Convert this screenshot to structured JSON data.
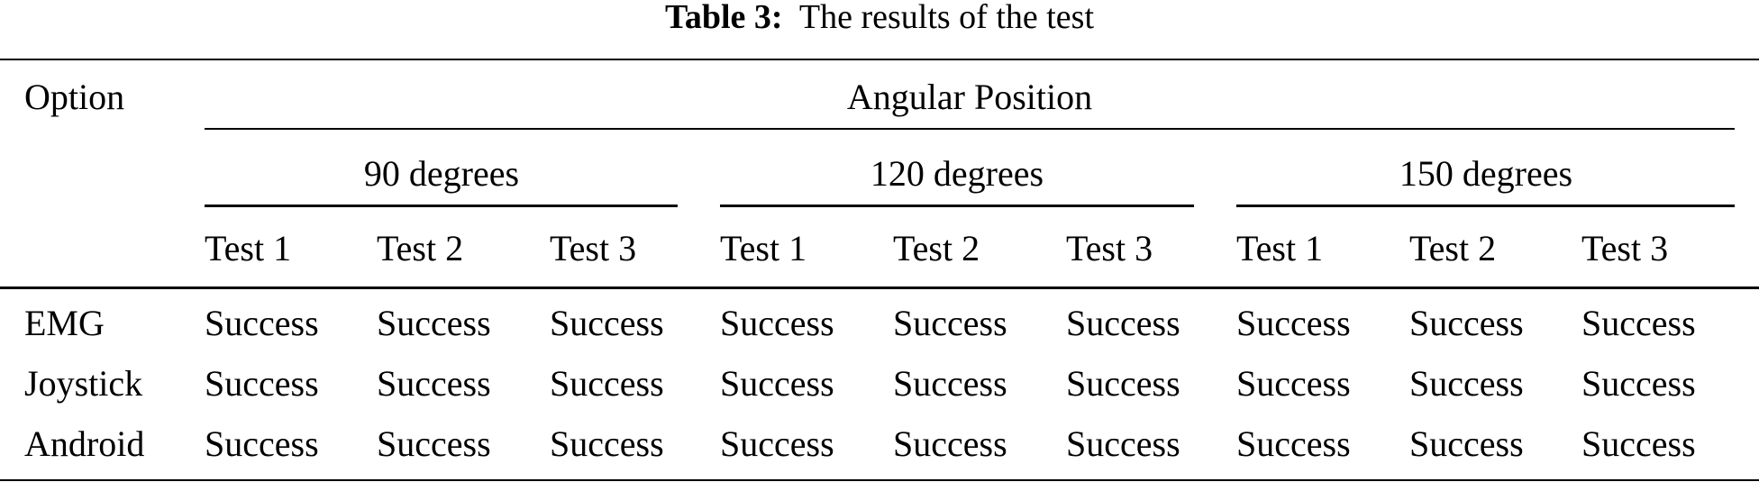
{
  "caption": {
    "label": "Table 3:",
    "text": "The results of the test"
  },
  "table": {
    "row_header": "Option",
    "group_header": "Angular Position",
    "subgroups": [
      "90 degrees",
      "120 degrees",
      "150 degrees"
    ],
    "tests": [
      "Test 1",
      "Test 2",
      "Test 3",
      "Test 1",
      "Test 2",
      "Test 3",
      "Test 1",
      "Test 2",
      "Test 3"
    ],
    "rows": [
      {
        "option": "EMG",
        "values": [
          "Success",
          "Success",
          "Success",
          "Success",
          "Success",
          "Success",
          "Success",
          "Success",
          "Success"
        ]
      },
      {
        "option": "Joystick",
        "values": [
          "Success",
          "Success",
          "Success",
          "Success",
          "Success",
          "Success",
          "Success",
          "Success",
          "Success"
        ]
      },
      {
        "option": "Android",
        "values": [
          "Success",
          "Success",
          "Success",
          "Success",
          "Success",
          "Success",
          "Success",
          "Success",
          "Success"
        ]
      }
    ]
  }
}
